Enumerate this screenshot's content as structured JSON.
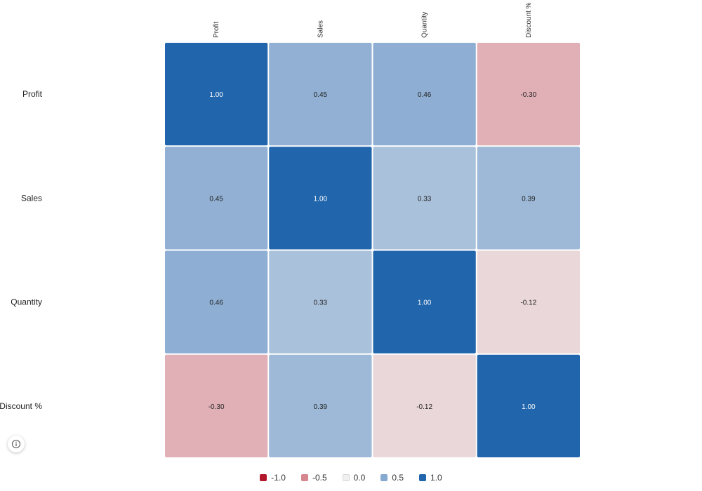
{
  "chart_data": {
    "type": "heatmap",
    "title": "",
    "x_categories": [
      "Profit",
      "Sales",
      "Quantity",
      "Discount %"
    ],
    "y_categories": [
      "Profit",
      "Sales",
      "Quantity",
      "Discount %"
    ],
    "matrix": [
      [
        1.0,
        0.45,
        0.46,
        -0.3
      ],
      [
        0.45,
        1.0,
        0.33,
        0.39
      ],
      [
        0.46,
        0.33,
        1.0,
        -0.12
      ],
      [
        -0.3,
        0.39,
        -0.12,
        1.0
      ]
    ],
    "value_format": "0.00",
    "color_scale": {
      "min": -1.0,
      "max": 1.0,
      "stops": [
        {
          "value": -1.0,
          "color": "#b2182b"
        },
        {
          "value": -0.5,
          "color": "#d6868f"
        },
        {
          "value": 0.0,
          "color": "#f0f0f0"
        },
        {
          "value": 0.5,
          "color": "#86a9d0"
        },
        {
          "value": 1.0,
          "color": "#2166ac"
        }
      ]
    },
    "legend": {
      "placement": "bottom-center",
      "entries": [
        {
          "label": "-1.0",
          "color": "#b2182b"
        },
        {
          "label": "-0.5",
          "color": "#d6868f"
        },
        {
          "label": "0.0",
          "color": "#f0f0f0"
        },
        {
          "label": "0.5",
          "color": "#86a9d0"
        },
        {
          "label": "1.0",
          "color": "#2166ac"
        }
      ]
    },
    "x_label_rotation_deg": -90
  },
  "controls": {
    "info_icon": "info-circle-icon"
  }
}
